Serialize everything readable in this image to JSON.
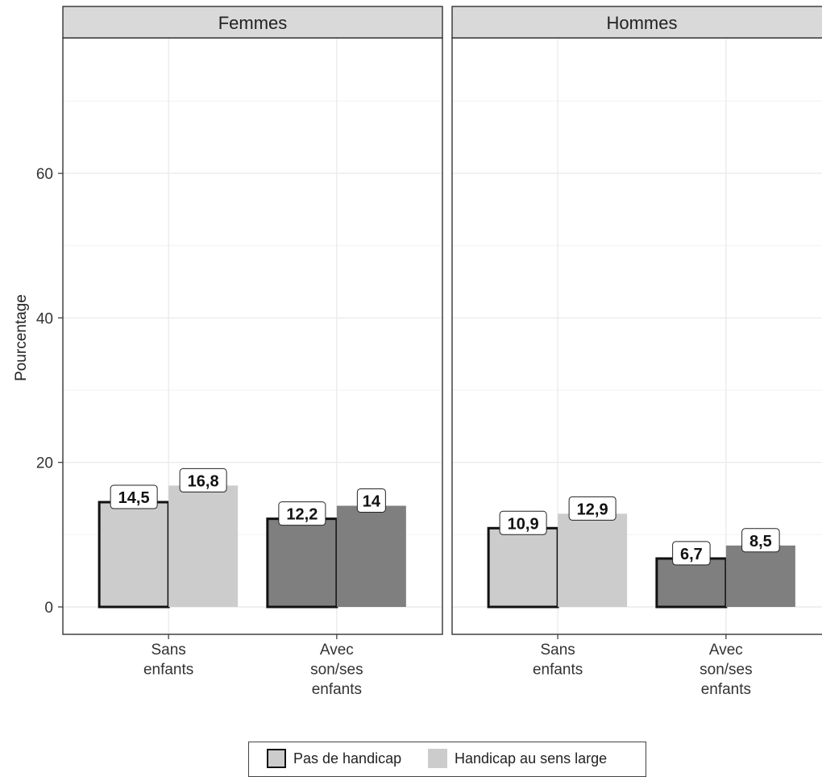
{
  "chart_data": {
    "type": "bar",
    "ylabel": "Pourcentage",
    "xlabel": "",
    "ylim": [
      -3.5,
      78
    ],
    "yticks": [
      0,
      20,
      40,
      60
    ],
    "facets": [
      {
        "title": "Femmes",
        "categories": [
          "Sans\nenfants",
          "Avec\nson/ses\nenfants"
        ],
        "series": [
          {
            "name": "Pas de handicap",
            "values": [
              14.5,
              12.2
            ],
            "labels": [
              "14,5",
              "12,2"
            ]
          },
          {
            "name": "Handicap au sens large",
            "values": [
              16.8,
              14
            ],
            "labels": [
              "16,8",
              "14"
            ]
          }
        ]
      },
      {
        "title": "Hommes",
        "categories": [
          "Sans\nenfants",
          "Avec\nson/ses\nenfants"
        ],
        "series": [
          {
            "name": "Pas de handicap",
            "values": [
              10.9,
              6.7
            ],
            "labels": [
              "10,9",
              "6,7"
            ]
          },
          {
            "name": "Handicap au sens large",
            "values": [
              12.9,
              8.5
            ],
            "labels": [
              "12,9",
              "8,5"
            ]
          }
        ]
      }
    ],
    "category_colors": [
      "#cccccc",
      "#7f7f7f"
    ],
    "legend": {
      "position": "bottom",
      "items": [
        "Pas de handicap",
        "Handicap au sens large"
      ]
    },
    "grid": true
  }
}
